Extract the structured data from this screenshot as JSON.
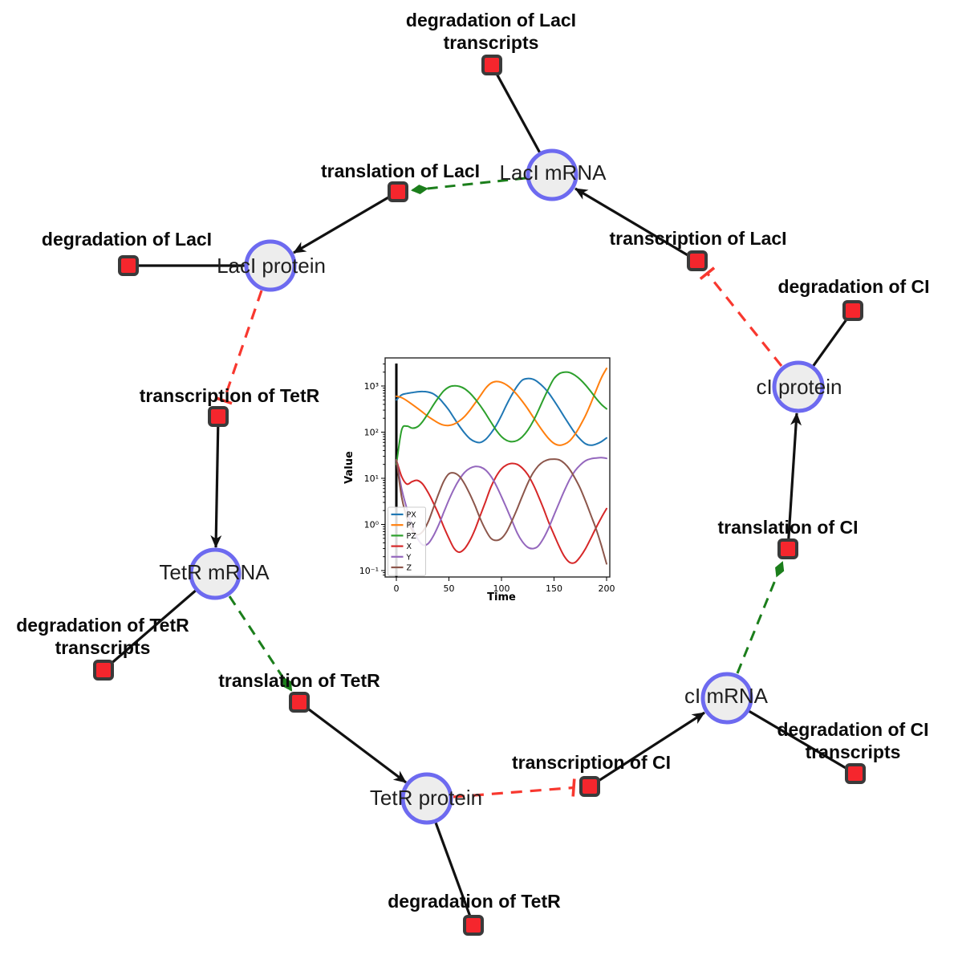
{
  "diagram": {
    "species": [
      {
        "id": "laci-mrna",
        "label": "LacI mRNA"
      },
      {
        "id": "laci-protein",
        "label": "LacI protein"
      },
      {
        "id": "tetr-mrna",
        "label": "TetR mRNA"
      },
      {
        "id": "tetr-protein",
        "label": "TetR protein"
      },
      {
        "id": "ci-mrna",
        "label": "cI mRNA"
      },
      {
        "id": "ci-protein",
        "label": "cI protein"
      }
    ],
    "reactions": [
      {
        "id": "degradation-of-laci-transcripts",
        "lines": [
          "degradation of LacI",
          "transcripts"
        ]
      },
      {
        "id": "translation-of-laci",
        "lines": [
          "translation of LacI"
        ]
      },
      {
        "id": "degradation-of-laci",
        "lines": [
          "degradation of LacI"
        ]
      },
      {
        "id": "transcription-of-tetr",
        "lines": [
          "transcription of TetR"
        ]
      },
      {
        "id": "transcription-of-laci",
        "lines": [
          "transcription of LacI"
        ]
      },
      {
        "id": "degradation-of-ci",
        "lines": [
          "degradation of CI"
        ]
      },
      {
        "id": "translation-of-ci",
        "lines": [
          "translation of CI"
        ]
      },
      {
        "id": "degradation-of-tetr-transcripts",
        "lines": [
          "degradation of TetR",
          "transcripts"
        ]
      },
      {
        "id": "translation-of-tetr",
        "lines": [
          "translation of TetR"
        ]
      },
      {
        "id": "degradation-of-tetr",
        "lines": [
          "degradation of TetR"
        ]
      },
      {
        "id": "transcription-of-ci",
        "lines": [
          "transcription of CI"
        ]
      },
      {
        "id": "degradation-of-ci-transcripts",
        "lines": [
          "degradation of CI",
          "transcripts"
        ]
      }
    ],
    "colors": {
      "species_fill": "#ededed",
      "species_border": "#6d6af0",
      "reaction_fill": "#f5262d",
      "reaction_border": "#3a3a3a",
      "edge": "#111111",
      "activation": "#1b7e1b",
      "inhibition": "#f8382f"
    }
  },
  "chart_data": {
    "type": "line",
    "yscale": "log",
    "xlabel": "Time",
    "ylabel": "Value",
    "xticks": [
      0,
      50,
      100,
      150,
      200
    ],
    "ytick_exponents": [
      -1,
      0,
      1,
      2,
      3
    ],
    "ytick_labels": [
      "10⁻¹",
      "10⁰",
      "10¹",
      "10²",
      "10³"
    ],
    "xlim": [
      -10.7,
      203
    ],
    "ylim": [
      0.072,
      4000
    ],
    "legend_position": "lower left",
    "marker_line_x": 0,
    "x": [
      0,
      5,
      10,
      15,
      20,
      25,
      30,
      35,
      40,
      45,
      50,
      55,
      60,
      65,
      70,
      75,
      80,
      85,
      90,
      95,
      100,
      105,
      110,
      115,
      120,
      125,
      130,
      135,
      140,
      145,
      150,
      155,
      160,
      165,
      170,
      175,
      180,
      185,
      190,
      195,
      200
    ],
    "series": [
      {
        "name": "PX",
        "color": "#1f77b4",
        "values": [
          500,
          640,
          690,
          720,
          750,
          760,
          740,
          680,
          560,
          420,
          300,
          200,
          135,
          95,
          72,
          62,
          60,
          70,
          95,
          140,
          230,
          400,
          650,
          1000,
          1350,
          1450,
          1400,
          1200,
          950,
          700,
          480,
          320,
          210,
          140,
          95,
          70,
          56,
          52,
          55,
          62,
          75
        ]
      },
      {
        "name": "PY",
        "color": "#ff7f0e",
        "values": [
          600,
          560,
          480,
          400,
          330,
          270,
          220,
          185,
          158,
          142,
          140,
          150,
          175,
          220,
          300,
          430,
          620,
          900,
          1150,
          1250,
          1200,
          1050,
          850,
          640,
          460,
          320,
          215,
          145,
          100,
          72,
          57,
          52,
          55,
          65,
          90,
          140,
          230,
          420,
          800,
          1500,
          2400
        ]
      },
      {
        "name": "PZ",
        "color": "#2ca02c",
        "values": [
          20,
          110,
          135,
          122,
          130,
          170,
          250,
          380,
          560,
          780,
          950,
          1010,
          980,
          870,
          700,
          520,
          370,
          250,
          165,
          110,
          80,
          66,
          62,
          66,
          80,
          110,
          170,
          290,
          520,
          900,
          1450,
          1850,
          2000,
          1950,
          1700,
          1380,
          1050,
          760,
          540,
          400,
          320
        ]
      },
      {
        "name": "X",
        "color": "#d62728",
        "values": [
          25,
          11,
          7.5,
          8.5,
          9,
          7.5,
          5,
          3,
          1.7,
          0.9,
          0.5,
          0.3,
          0.25,
          0.3,
          0.45,
          0.8,
          1.6,
          3.2,
          6.5,
          11,
          16,
          19.5,
          21,
          20,
          16.5,
          12,
          7.5,
          4.2,
          2.2,
          1.1,
          0.6,
          0.33,
          0.2,
          0.15,
          0.15,
          0.2,
          0.3,
          0.5,
          0.85,
          1.4,
          2.2
        ]
      },
      {
        "name": "Y",
        "color": "#9467bd",
        "values": [
          25,
          6,
          2.2,
          0.9,
          0.5,
          0.36,
          0.38,
          0.55,
          0.95,
          1.8,
          3.4,
          6,
          9.5,
          13.5,
          16.5,
          18,
          17.5,
          15,
          11,
          7,
          4,
          2.2,
          1.2,
          0.65,
          0.42,
          0.32,
          0.3,
          0.34,
          0.5,
          0.85,
          1.6,
          3,
          5.5,
          9.5,
          14.5,
          19.5,
          24,
          26.5,
          27.5,
          28,
          27
        ]
      },
      {
        "name": "Z",
        "color": "#8c564b",
        "values": [
          25,
          4,
          1.4,
          0.75,
          0.6,
          0.7,
          1.1,
          2.2,
          4.5,
          8.5,
          12.5,
          13,
          11,
          7.5,
          4.5,
          2.5,
          1.3,
          0.75,
          0.5,
          0.45,
          0.5,
          0.7,
          1.2,
          2.2,
          4.2,
          7.8,
          13,
          18.5,
          23,
          25.5,
          26,
          25,
          21,
          15.5,
          10,
          6,
          3.2,
          1.6,
          0.8,
          0.35,
          0.14
        ]
      }
    ]
  }
}
